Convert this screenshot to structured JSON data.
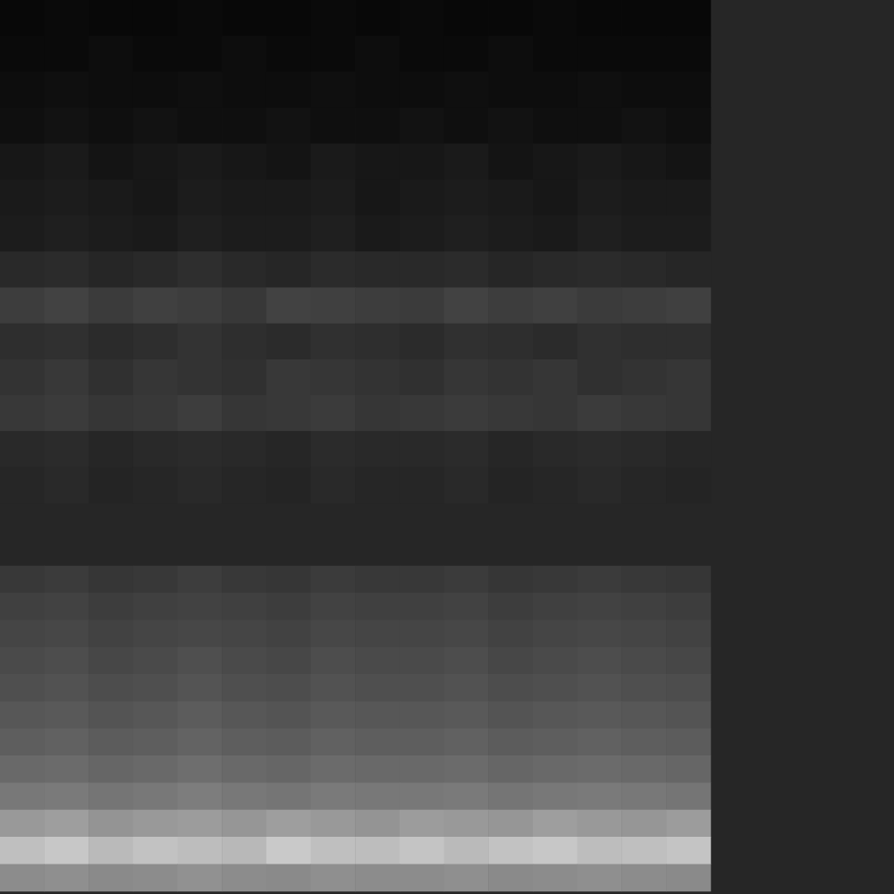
{
  "chart_data": [
    {
      "type": "heatmap",
      "tick_labels": false,
      "value_range": [
        0,
        1
      ],
      "cells": [
        [
          0.03,
          0.04,
          0.03,
          0.03,
          0.04,
          0.03,
          0.03,
          0.04,
          0.03,
          0.04,
          0.03,
          0.03,
          0.04,
          0.03,
          0.03,
          0.03
        ],
        [
          0.04,
          0.04,
          0.05,
          0.04,
          0.04,
          0.05,
          0.04,
          0.04,
          0.05,
          0.04,
          0.04,
          0.05,
          0.04,
          0.04,
          0.04,
          0.04
        ],
        [
          0.05,
          0.06,
          0.05,
          0.05,
          0.06,
          0.05,
          0.05,
          0.06,
          0.05,
          0.05,
          0.06,
          0.05,
          0.05,
          0.06,
          0.05,
          0.05
        ],
        [
          0.06,
          0.07,
          0.06,
          0.07,
          0.06,
          0.06,
          0.07,
          0.06,
          0.06,
          0.07,
          0.06,
          0.07,
          0.06,
          0.06,
          0.07,
          0.06
        ],
        [
          0.09,
          0.1,
          0.08,
          0.09,
          0.1,
          0.09,
          0.08,
          0.1,
          0.09,
          0.09,
          0.1,
          0.08,
          0.09,
          0.1,
          0.09,
          0.08
        ],
        [
          0.1,
          0.11,
          0.1,
          0.09,
          0.11,
          0.1,
          0.1,
          0.11,
          0.09,
          0.1,
          0.11,
          0.1,
          0.09,
          0.11,
          0.1,
          0.1
        ],
        [
          0.11,
          0.12,
          0.11,
          0.1,
          0.12,
          0.11,
          0.11,
          0.12,
          0.1,
          0.11,
          0.12,
          0.11,
          0.1,
          0.12,
          0.11,
          0.11
        ],
        [
          0.16,
          0.17,
          0.15,
          0.16,
          0.18,
          0.16,
          0.15,
          0.17,
          0.16,
          0.16,
          0.17,
          0.15,
          0.16,
          0.17,
          0.16,
          0.15
        ],
        [
          0.24,
          0.26,
          0.23,
          0.25,
          0.24,
          0.22,
          0.26,
          0.25,
          0.24,
          0.23,
          0.26,
          0.24,
          0.25,
          0.23,
          0.24,
          0.25
        ],
        [
          0.18,
          0.19,
          0.17,
          0.18,
          0.2,
          0.18,
          0.17,
          0.19,
          0.18,
          0.17,
          0.19,
          0.18,
          0.17,
          0.19,
          0.18,
          0.18
        ],
        [
          0.2,
          0.22,
          0.19,
          0.21,
          0.2,
          0.19,
          0.22,
          0.21,
          0.2,
          0.19,
          0.21,
          0.2,
          0.21,
          0.19,
          0.2,
          0.21
        ],
        [
          0.22,
          0.23,
          0.21,
          0.22,
          0.24,
          0.21,
          0.22,
          0.23,
          0.21,
          0.22,
          0.23,
          0.22,
          0.21,
          0.23,
          0.22,
          0.21
        ],
        [
          0.16,
          0.17,
          0.15,
          0.16,
          0.17,
          0.16,
          0.15,
          0.17,
          0.16,
          0.16,
          0.17,
          0.15,
          0.16,
          0.17,
          0.16,
          0.15
        ],
        [
          0.15,
          0.16,
          0.14,
          0.15,
          0.16,
          0.15,
          0.14,
          0.16,
          0.15,
          0.15,
          0.16,
          0.14,
          0.15,
          0.16,
          0.15,
          0.14
        ]
      ]
    },
    {
      "type": "heatmap",
      "tick_labels": false,
      "value_range": [
        0,
        1
      ],
      "cells": [
        [
          0.22,
          0.23,
          0.21,
          0.22,
          0.24,
          0.22,
          0.21,
          0.23,
          0.22,
          0.22,
          0.23,
          0.21,
          0.22,
          0.23,
          0.22,
          0.21
        ],
        [
          0.25,
          0.26,
          0.24,
          0.25,
          0.26,
          0.25,
          0.24,
          0.26,
          0.25,
          0.25,
          0.26,
          0.24,
          0.25,
          0.26,
          0.25,
          0.24
        ],
        [
          0.27,
          0.28,
          0.26,
          0.27,
          0.28,
          0.27,
          0.26,
          0.28,
          0.27,
          0.27,
          0.28,
          0.26,
          0.27,
          0.28,
          0.27,
          0.26
        ],
        [
          0.29,
          0.3,
          0.28,
          0.29,
          0.31,
          0.29,
          0.28,
          0.3,
          0.29,
          0.29,
          0.3,
          0.28,
          0.29,
          0.3,
          0.29,
          0.28
        ],
        [
          0.31,
          0.32,
          0.3,
          0.31,
          0.33,
          0.31,
          0.3,
          0.32,
          0.31,
          0.31,
          0.32,
          0.3,
          0.31,
          0.32,
          0.31,
          0.3
        ],
        [
          0.34,
          0.35,
          0.33,
          0.34,
          0.36,
          0.34,
          0.33,
          0.35,
          0.34,
          0.34,
          0.35,
          0.33,
          0.34,
          0.35,
          0.34,
          0.33
        ],
        [
          0.37,
          0.38,
          0.36,
          0.37,
          0.39,
          0.37,
          0.36,
          0.38,
          0.37,
          0.37,
          0.38,
          0.36,
          0.37,
          0.38,
          0.37,
          0.36
        ],
        [
          0.41,
          0.42,
          0.4,
          0.41,
          0.43,
          0.41,
          0.4,
          0.42,
          0.41,
          0.41,
          0.42,
          0.4,
          0.41,
          0.42,
          0.41,
          0.4
        ],
        [
          0.47,
          0.48,
          0.46,
          0.47,
          0.49,
          0.47,
          0.46,
          0.48,
          0.47,
          0.47,
          0.48,
          0.46,
          0.47,
          0.48,
          0.47,
          0.46
        ],
        [
          0.6,
          0.62,
          0.58,
          0.6,
          0.61,
          0.59,
          0.62,
          0.6,
          0.58,
          0.61,
          0.6,
          0.59,
          0.62,
          0.6,
          0.59,
          0.61
        ],
        [
          0.75,
          0.78,
          0.73,
          0.76,
          0.74,
          0.72,
          0.79,
          0.75,
          0.74,
          0.77,
          0.73,
          0.76,
          0.78,
          0.74,
          0.75,
          0.77
        ],
        [
          0.55,
          0.56,
          0.54,
          0.55,
          0.57,
          0.55,
          0.54,
          0.56,
          0.55,
          0.55,
          0.56,
          0.54,
          0.55,
          0.56,
          0.55,
          0.54
        ]
      ]
    }
  ]
}
